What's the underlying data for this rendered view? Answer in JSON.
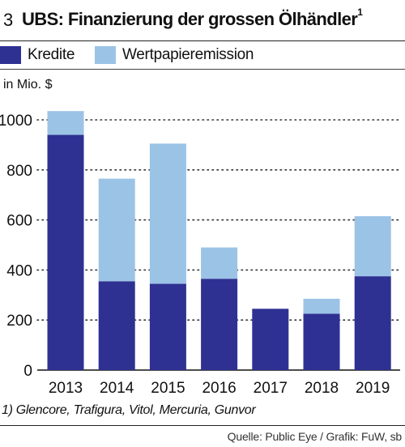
{
  "header": {
    "number": "3",
    "title": "UBS: Finanzierung der grossen Ölhändler",
    "title_sup": "1"
  },
  "colors": {
    "kredite": "#2e3192",
    "wertpapier": "#9bc3e6"
  },
  "chart_data": {
    "type": "bar",
    "stacked": true,
    "categories": [
      "2013",
      "2014",
      "2015",
      "2016",
      "2017",
      "2018",
      "2019"
    ],
    "series": [
      {
        "name": "Kredite",
        "values": [
          940,
          355,
          345,
          365,
          245,
          225,
          375
        ]
      },
      {
        "name": "Wertpapieremission",
        "values": [
          95,
          410,
          560,
          125,
          0,
          60,
          240
        ]
      }
    ],
    "ylabel": "in Mio. $",
    "ylim": [
      0,
      1000
    ],
    "yticks": [
      "0",
      "200",
      "400",
      "600",
      "800",
      "1000"
    ],
    "grid": "dotted-horizontal",
    "legend": "top-left"
  },
  "footnote": "1) Glencore, Trafigura, Vitol, Mercuria, Gunvor",
  "source": "Quelle: Public Eye / Grafik: FuW, sb"
}
